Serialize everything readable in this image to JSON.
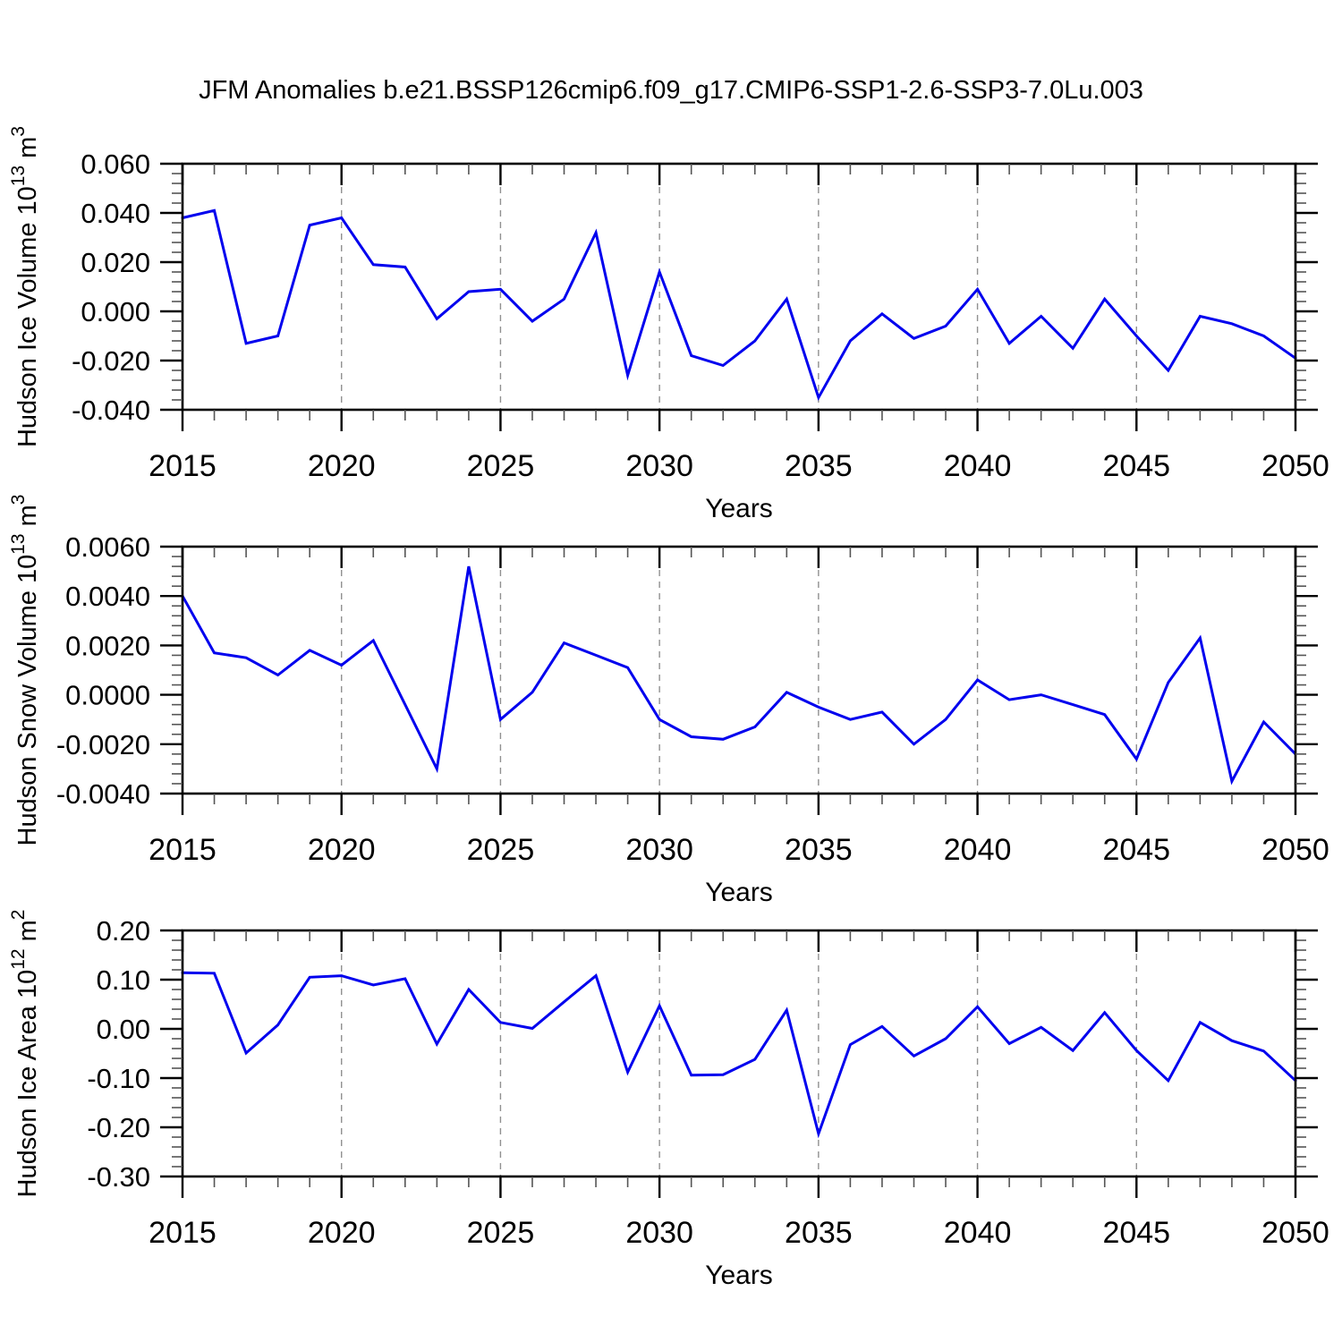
{
  "title": "JFM Anomalies b.e21.BSSP126cmip6.f09_g17.CMIP6-SSP1-2.6-SSP3-7.0Lu.003",
  "colors": {
    "line": "#0000EE",
    "axis": "#000000",
    "minor_tick": "#555555",
    "gridline": "#909090",
    "background": "#ffffff"
  },
  "chart_data": [
    {
      "type": "line",
      "title": "",
      "ylabel": "Hudson Ice Volume 10¹³ m³",
      "ylabel_parts": {
        "prefix": "Hudson Ice Volume 10",
        "exp": "13",
        "unit": " m",
        "unit_exp": "3"
      },
      "xlabel": "Years",
      "ylim": [
        -0.04,
        0.06
      ],
      "xlim": [
        2015,
        2050
      ],
      "ytick_major_step": 0.02,
      "ytick_minor_step": 0.004,
      "ytick_labels": [
        "0.060",
        "0.040",
        "0.020",
        "0.000",
        "-0.020",
        "-0.040"
      ],
      "xtick_labels": [
        "2015",
        "2020",
        "2025",
        "2030",
        "2035",
        "2040",
        "2045",
        "2050"
      ],
      "gridline_years": [
        2020,
        2025,
        2030,
        2035,
        2040,
        2045
      ],
      "grid": "vertical-dashed",
      "legend": "none",
      "x": [
        2015,
        2016,
        2017,
        2018,
        2019,
        2020,
        2021,
        2022,
        2023,
        2024,
        2025,
        2026,
        2027,
        2028,
        2029,
        2030,
        2031,
        2032,
        2033,
        2034,
        2035,
        2036,
        2037,
        2038,
        2039,
        2040,
        2041,
        2042,
        2043,
        2044,
        2045,
        2046,
        2047,
        2048,
        2049,
        2050
      ],
      "values": [
        0.038,
        0.041,
        -0.013,
        -0.01,
        0.035,
        0.038,
        0.019,
        0.018,
        -0.003,
        0.008,
        0.009,
        -0.004,
        0.005,
        0.032,
        -0.026,
        0.016,
        -0.018,
        -0.022,
        -0.012,
        0.005,
        -0.035,
        -0.012,
        -0.001,
        -0.011,
        -0.006,
        0.009,
        -0.013,
        -0.002,
        -0.015,
        0.005,
        -0.01,
        -0.024,
        -0.002,
        -0.005,
        -0.01,
        -0.019
      ]
    },
    {
      "type": "line",
      "title": "",
      "ylabel": "Hudson Snow Volume 10¹³ m³",
      "ylabel_parts": {
        "prefix": "Hudson Snow Volume 10",
        "exp": "13",
        "unit": " m",
        "unit_exp": "3"
      },
      "xlabel": "Years",
      "ylim": [
        -0.004,
        0.006
      ],
      "xlim": [
        2015,
        2050
      ],
      "ytick_major_step": 0.002,
      "ytick_minor_step": 0.0004,
      "ytick_labels": [
        "0.0060",
        "0.0040",
        "0.0020",
        "0.0000",
        "-0.0020",
        "-0.0040"
      ],
      "xtick_labels": [
        "2015",
        "2020",
        "2025",
        "2030",
        "2035",
        "2040",
        "2045",
        "2050"
      ],
      "gridline_years": [
        2020,
        2025,
        2030,
        2035,
        2040,
        2045
      ],
      "grid": "vertical-dashed",
      "legend": "none",
      "x": [
        2015,
        2016,
        2017,
        2018,
        2019,
        2020,
        2021,
        2022,
        2023,
        2024,
        2025,
        2026,
        2027,
        2028,
        2029,
        2030,
        2031,
        2032,
        2033,
        2034,
        2035,
        2036,
        2037,
        2038,
        2039,
        2040,
        2041,
        2042,
        2043,
        2044,
        2045,
        2046,
        2047,
        2048,
        2049,
        2050
      ],
      "values": [
        0.004,
        0.0017,
        0.0015,
        0.0008,
        0.0018,
        0.0012,
        0.0022,
        -0.0004,
        -0.003,
        0.0052,
        -0.001,
        0.0001,
        0.0021,
        0.0016,
        0.0011,
        -0.001,
        -0.0017,
        -0.0018,
        -0.0013,
        0.0001,
        -0.0005,
        -0.001,
        -0.0007,
        -0.002,
        -0.001,
        0.0006,
        -0.0002,
        0.0,
        -0.0004,
        -0.0008,
        -0.0026,
        0.0005,
        0.0023,
        -0.0035,
        -0.0011,
        -0.0024
      ]
    },
    {
      "type": "line",
      "title": "",
      "ylabel": "Hudson Ice Area 10¹² m²",
      "ylabel_parts": {
        "prefix": "Hudson Ice Area 10",
        "exp": "12",
        "unit": " m",
        "unit_exp": "2"
      },
      "xlabel": "Years",
      "ylim": [
        -0.3,
        0.2
      ],
      "xlim": [
        2015,
        2050
      ],
      "ytick_major_step": 0.1,
      "ytick_minor_step": 0.02,
      "ytick_labels": [
        "0.20",
        "0.10",
        "0.00",
        "-0.10",
        "-0.20",
        "-0.30"
      ],
      "xtick_labels": [
        "2015",
        "2020",
        "2025",
        "2030",
        "2035",
        "2040",
        "2045",
        "2050"
      ],
      "gridline_years": [
        2020,
        2025,
        2030,
        2035,
        2040,
        2045
      ],
      "grid": "vertical-dashed",
      "legend": "none",
      "x": [
        2015,
        2016,
        2017,
        2018,
        2019,
        2020,
        2021,
        2022,
        2023,
        2024,
        2025,
        2026,
        2027,
        2028,
        2029,
        2030,
        2031,
        2032,
        2033,
        2034,
        2035,
        2036,
        2037,
        2038,
        2039,
        2040,
        2041,
        2042,
        2043,
        2044,
        2045,
        2046,
        2047,
        2048,
        2049,
        2050
      ],
      "values": [
        0.114,
        0.113,
        -0.049,
        0.008,
        0.105,
        0.108,
        0.089,
        0.102,
        -0.031,
        0.08,
        0.013,
        0.001,
        0.055,
        0.108,
        -0.088,
        0.047,
        -0.094,
        -0.093,
        -0.062,
        0.038,
        -0.213,
        -0.032,
        0.005,
        -0.055,
        -0.02,
        0.045,
        -0.03,
        0.003,
        -0.044,
        0.033,
        -0.044,
        -0.105,
        0.013,
        -0.024,
        -0.045,
        -0.105
      ]
    }
  ]
}
